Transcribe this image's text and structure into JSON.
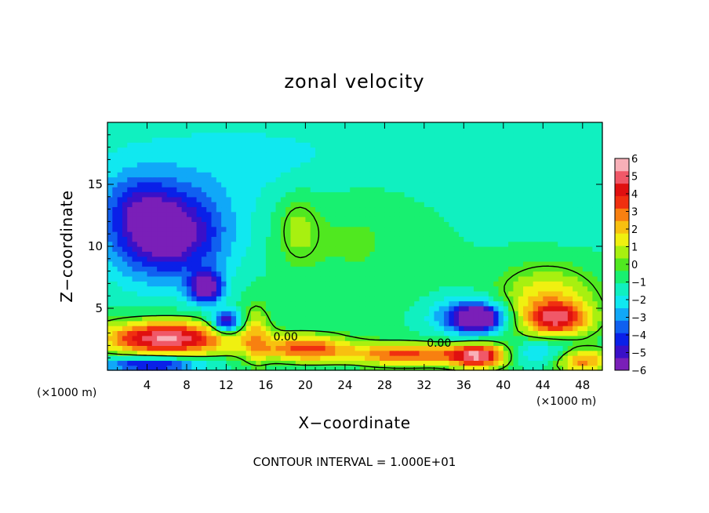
{
  "chart_data": {
    "type": "heatmap",
    "title": "zonal velocity",
    "xlabel": "X−coordinate",
    "ylabel": "Z−coordinate",
    "x_unit": "(×1000 m)",
    "z_unit": "(×1000 m)",
    "xlim": [
      0,
      50
    ],
    "ylim": [
      0,
      20
    ],
    "x_ticks": [
      4,
      8,
      12,
      16,
      20,
      24,
      28,
      32,
      36,
      40,
      44,
      48
    ],
    "y_ticks": [
      5,
      10,
      15
    ],
    "colorbar": {
      "range": [
        -6,
        6
      ],
      "ticks": [
        6,
        5,
        4,
        3,
        2,
        1,
        0,
        -1,
        -2,
        -3,
        -4,
        -5,
        -6
      ],
      "tick_labels": [
        "6",
        "5",
        "4",
        "3",
        "2",
        "1",
        "0",
        "−1",
        "−2",
        "−3",
        "−4",
        "−5",
        "−6"
      ],
      "colors": [
        "#7a1fb8",
        "#3a10c8",
        "#0a20e8",
        "#1060f0",
        "#10a8f8",
        "#10e8f0",
        "#10f0c0",
        "#18f070",
        "#50e820",
        "#a8f010",
        "#f0f010",
        "#f8c010",
        "#f88010",
        "#f03010",
        "#e01010",
        "#f05868",
        "#f8b0b8"
      ]
    },
    "contour_labels": [
      "0.00",
      "0.00"
    ],
    "contour_interval_text": "CONTOUR INTERVAL = 1.000E+01",
    "background_value": -1,
    "features": [
      {
        "cx": 6,
        "cz": 11,
        "rx": 6,
        "rz": 3.7,
        "peak": -5.2
      },
      {
        "cx": 5.5,
        "cz": 11.2,
        "rx": 2.5,
        "rz": 1.5,
        "peak": -0.8
      },
      {
        "cx": 10,
        "cz": 6.7,
        "rx": 1.6,
        "rz": 1.2,
        "peak": -5.5
      },
      {
        "cx": 12,
        "cz": 3.9,
        "rx": 1.5,
        "rz": 0.9,
        "peak": -5.0
      },
      {
        "cx": 3,
        "cz": 13.5,
        "rx": 3.5,
        "rz": 2.5,
        "peak": -1.5
      },
      {
        "cx": 19.2,
        "cz": 11.5,
        "rx": 2.1,
        "rz": 2.8,
        "peak": 1.6
      },
      {
        "cx": 25,
        "cz": 11,
        "rx": 6,
        "rz": 5,
        "peak": 0.8
      },
      {
        "cx": 37,
        "cz": 4.3,
        "rx": 3.6,
        "rz": 1.4,
        "peak": -4.8
      },
      {
        "cx": 37.5,
        "cz": 4.2,
        "rx": 1.6,
        "rz": 0.8,
        "peak": -4.0
      },
      {
        "cx": 44.5,
        "cz": 5.2,
        "rx": 5,
        "rz": 3.2,
        "peak": 3.2
      },
      {
        "cx": 45.5,
        "cz": 4.2,
        "rx": 3,
        "rz": 1.2,
        "peak": 3.5
      },
      {
        "cx": 6,
        "cz": 2.6,
        "rx": 6.5,
        "rz": 1.4,
        "peak": 6.5
      },
      {
        "cx": 20,
        "cz": 1.8,
        "rx": 4.5,
        "rz": 1.1,
        "peak": 4.5
      },
      {
        "cx": 30,
        "cz": 1.3,
        "rx": 5.5,
        "rz": 0.9,
        "peak": 4.5
      },
      {
        "cx": 37.5,
        "cz": 1.2,
        "rx": 3,
        "rz": 1.0,
        "peak": 6.0
      },
      {
        "cx": 4.5,
        "cz": 0.5,
        "rx": 5,
        "rz": 0.6,
        "peak": -4.5
      },
      {
        "cx": 44,
        "cz": 1.5,
        "rx": 4,
        "rz": 1.2,
        "peak": -2.5
      },
      {
        "cx": 48,
        "cz": 0.8,
        "rx": 3,
        "rz": 1.0,
        "peak": 4.0
      },
      {
        "cx": 15,
        "cz": 3,
        "rx": 1.5,
        "rz": 2.5,
        "peak": 2.2
      },
      {
        "cx": 14,
        "cz": 17,
        "rx": 20,
        "rz": 4,
        "peak": -1.0
      },
      {
        "cx": 46,
        "cz": 15,
        "rx": 8,
        "rz": 6,
        "peak": -0.6
      }
    ]
  }
}
